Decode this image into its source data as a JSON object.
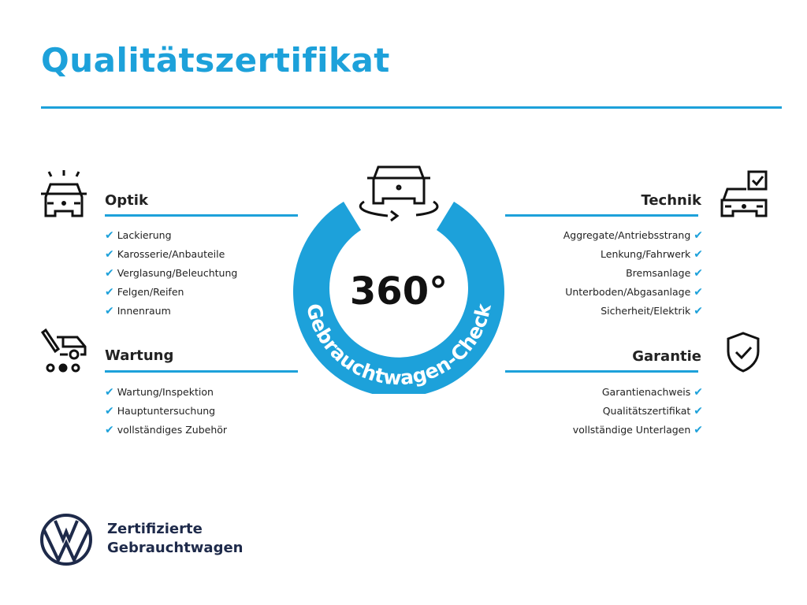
{
  "title": "Qualitätszertifikat",
  "colors": {
    "accent": "#1da1da",
    "dark": "#1e2a4a"
  },
  "center": {
    "big": "360°",
    "ring_text": "Gebrauchtwagen-Check",
    "icon": "car-rotate-icon"
  },
  "sections": {
    "optik": {
      "title": "Optik",
      "icon": "car-lights-icon",
      "items": [
        "Lackierung",
        "Karosserie/Anbauteile",
        "Verglasung/Beleuchtung",
        "Felgen/Reifen",
        "Innenraum"
      ]
    },
    "wartung": {
      "title": "Wartung",
      "icon": "car-service-icon",
      "items": [
        "Wartung/Inspektion",
        "Hauptuntersuchung",
        "vollständiges Zubehör"
      ]
    },
    "technik": {
      "title": "Technik",
      "icon": "car-checkbox-icon",
      "items": [
        "Aggregate/Antriebsstrang",
        "Lenkung/Fahrwerk",
        "Bremsanlage",
        "Unterboden/Abgasanlage",
        "Sicherheit/Elektrik"
      ]
    },
    "garantie": {
      "title": "Garantie",
      "icon": "shield-check-icon",
      "items": [
        "Garantienachweis",
        "Qualitätszertifikat",
        "vollständige Unterlagen"
      ]
    }
  },
  "brand": {
    "line1": "Zertifizierte",
    "line2": "Gebrauchtwagen",
    "logo": "VW"
  }
}
